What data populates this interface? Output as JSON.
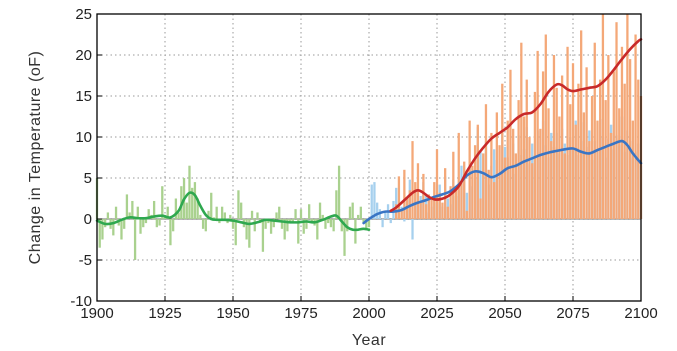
{
  "chart_data": {
    "type": "line",
    "xlabel": "Year",
    "ylabel": "Change in Temperature (oF)",
    "xlim": [
      1900,
      2100
    ],
    "ylim": [
      -10,
      25
    ],
    "x_ticks": [
      "1900",
      "1925",
      "1950",
      "1975",
      "2000",
      "2025",
      "2050",
      "2075",
      "2100"
    ],
    "y_ticks": [
      "-10",
      "-5",
      "0",
      "5",
      "10",
      "15",
      "20",
      "25"
    ],
    "grid": true,
    "colors": {
      "historical_bars": "#a9d18e",
      "historical_line": "#2fa84f",
      "low_bars": "#a6d0ee",
      "low_line": "#3a75c4",
      "high_bars": "#f4a878",
      "high_line": "#c82a2a"
    },
    "series": [
      {
        "kind": "bars",
        "color_key": "historical_bars",
        "x": [
          1900,
          1901,
          1902,
          1903,
          1904,
          1905,
          1906,
          1907,
          1908,
          1909,
          1910,
          1911,
          1912,
          1913,
          1914,
          1915,
          1916,
          1917,
          1918,
          1919,
          1920,
          1921,
          1922,
          1923,
          1924,
          1925,
          1926,
          1927,
          1928,
          1929,
          1930,
          1931,
          1932,
          1933,
          1934,
          1935,
          1936,
          1937,
          1938,
          1939,
          1940,
          1941,
          1942,
          1943,
          1944,
          1945,
          1946,
          1947,
          1948,
          1949,
          1950,
          1951,
          1952,
          1953,
          1954,
          1955,
          1956,
          1957,
          1958,
          1959,
          1960,
          1961,
          1962,
          1963,
          1964,
          1965,
          1966,
          1967,
          1968,
          1969,
          1970,
          1971,
          1972,
          1973,
          1974,
          1975,
          1976,
          1977,
          1978,
          1979,
          1980,
          1981,
          1982,
          1983,
          1984,
          1985,
          1986,
          1987,
          1988,
          1989,
          1990,
          1991,
          1992,
          1993,
          1994,
          1995,
          1996,
          1997,
          1998,
          1999,
          2000
        ],
        "values": [
          5,
          -3.5,
          -2.5,
          -1,
          0.8,
          -1.2,
          -2,
          1.5,
          -0.8,
          -2.5,
          -1.2,
          3,
          0.8,
          2.2,
          -5,
          1.5,
          -1.8,
          -1,
          -0.5,
          1.2,
          0.5,
          2.2,
          -1,
          -0.8,
          4,
          0.5,
          1.5,
          -3.2,
          -1.5,
          2.5,
          0.8,
          4,
          5,
          2,
          6.5,
          3.8,
          4.5,
          2.5,
          0.5,
          -1.2,
          -1.5,
          1,
          3.2,
          0.2,
          1.5,
          -0.5,
          1.5,
          0.8,
          -0.5,
          0.5,
          -1.2,
          -3.2,
          3.5,
          2,
          -1,
          -2.5,
          -3.5,
          1,
          -1.5,
          0.8,
          -0.5,
          -4,
          -1.2,
          -0.5,
          -1.8,
          -1,
          0.8,
          1.5,
          -1.2,
          -2.5,
          -1.5,
          -0.5,
          -0.5,
          1.2,
          -3,
          1.2,
          -1.8,
          -1.2,
          1.8,
          -0.5,
          -0.8,
          -2.5,
          2,
          0.5,
          -1.2,
          -0.5,
          -1,
          -1.5,
          3.5,
          6.5,
          -1.5,
          -4.5,
          -1.5,
          1.5,
          2,
          -3,
          0.5,
          1.5,
          -0.5,
          -1.2,
          -1
        ]
      },
      {
        "name": "",
        "kind": "line",
        "color_key": "historical_line",
        "x": [
          1900,
          1903,
          1906,
          1909,
          1912,
          1915,
          1918,
          1921,
          1924,
          1927,
          1930,
          1932,
          1934,
          1936,
          1938,
          1940,
          1942,
          1944,
          1947,
          1950,
          1953,
          1956,
          1959,
          1962,
          1965,
          1968,
          1971,
          1974,
          1977,
          1980,
          1983,
          1986,
          1988,
          1990,
          1992,
          1994,
          1996,
          1998,
          2000
        ],
        "values": [
          -0.2,
          -0.6,
          -0.5,
          -0.1,
          0.2,
          0.1,
          0.1,
          0.3,
          0.4,
          0.2,
          1.0,
          2.4,
          3.2,
          2.9,
          1.6,
          0.5,
          0.0,
          -0.1,
          -0.1,
          -0.2,
          -0.4,
          -0.6,
          -0.4,
          -0.1,
          -0.2,
          -0.3,
          -0.4,
          -0.4,
          -0.3,
          -0.4,
          -0.1,
          0.3,
          0.4,
          -0.3,
          -1.0,
          -1.3,
          -1.3,
          -1.2,
          -1.3
        ]
      },
      {
        "kind": "bars",
        "color_key": "low_bars",
        "x": [
          2001,
          2002,
          2003,
          2004,
          2005,
          2006,
          2007,
          2008,
          2009,
          2010,
          2011,
          2012,
          2013,
          2014,
          2015,
          2016,
          2017,
          2018,
          2019,
          2020,
          2021,
          2022,
          2023,
          2024,
          2025,
          2026,
          2027,
          2028,
          2029,
          2030,
          2031,
          2032,
          2033,
          2034,
          2035,
          2036,
          2037,
          2038,
          2039,
          2040,
          2041,
          2042,
          2043,
          2044,
          2045,
          2046,
          2047,
          2048,
          2049,
          2050,
          2051,
          2052,
          2053,
          2054,
          2055,
          2056,
          2057,
          2058,
          2059,
          2060,
          2061,
          2062,
          2063,
          2064,
          2065,
          2066,
          2067,
          2068,
          2069,
          2070,
          2071,
          2072,
          2073,
          2074,
          2075,
          2076,
          2077,
          2078,
          2079,
          2080,
          2081,
          2082,
          2083,
          2084,
          2085,
          2086,
          2087,
          2088,
          2089,
          2090,
          2091,
          2092,
          2093,
          2094,
          2095,
          2096,
          2097,
          2098,
          2099,
          2100
        ],
        "values": [
          4.2,
          4.5,
          2,
          1.2,
          -1,
          0.8,
          1.8,
          -0.5,
          2.2,
          3.8,
          0.2,
          1.5,
          -0.3,
          2.5,
          4.8,
          -2.5,
          3.2,
          1.8,
          2.8,
          4.5,
          3,
          0.8,
          1.5,
          2.5,
          2,
          4.2,
          1.5,
          5.2,
          2.5,
          1.8,
          4.8,
          2.8,
          3.5,
          6.5,
          5.5,
          3.2,
          6.2,
          4,
          5,
          11.2,
          8.2,
          6,
          9.5,
          4.2,
          6.5,
          8.5,
          7.2,
          5.5,
          10.5,
          8.8,
          7.5,
          6,
          9.2,
          5.5,
          10.2,
          7.8,
          8.5,
          11.2,
          6.8,
          9.2,
          7.8,
          10.8,
          8.2,
          12,
          9,
          7.5,
          10.5,
          8.8,
          10.5,
          8,
          11,
          9.2,
          7.8,
          10,
          8.5,
          12,
          7.8,
          9.5,
          11.8,
          8.8,
          10.8,
          7.2,
          9.5,
          8.5,
          12.2,
          10,
          7.5,
          9.8,
          11.5,
          8.5,
          10.2,
          9,
          12.5,
          8.2,
          10.8,
          9.5,
          7.5,
          8.2,
          9.2,
          6.5
        ]
      },
      {
        "name": "",
        "kind": "line",
        "color_key": "low_line",
        "x": [
          1998,
          2000,
          2003,
          2006,
          2009,
          2012,
          2015,
          2018,
          2021,
          2024,
          2027,
          2030,
          2033,
          2036,
          2039,
          2042,
          2045,
          2048,
          2051,
          2054,
          2057,
          2060,
          2063,
          2066,
          2069,
          2072,
          2075,
          2078,
          2081,
          2084,
          2087,
          2090,
          2093,
          2095,
          2097,
          2100
        ],
        "values": [
          -0.5,
          0.0,
          0.6,
          0.9,
          0.9,
          1.1,
          1.6,
          2.0,
          2.3,
          2.7,
          3.0,
          3.4,
          4.2,
          5.3,
          5.8,
          5.6,
          5.1,
          5.5,
          6.2,
          6.5,
          7.0,
          7.4,
          7.8,
          8.1,
          8.3,
          8.5,
          8.6,
          8.2,
          8.0,
          8.4,
          8.8,
          9.2,
          9.5,
          9.0,
          8.0,
          6.8
        ]
      },
      {
        "kind": "bars",
        "color_key": "high_bars",
        "x": [
          2010,
          2011,
          2012,
          2013,
          2014,
          2015,
          2016,
          2017,
          2018,
          2019,
          2020,
          2021,
          2022,
          2023,
          2024,
          2025,
          2026,
          2027,
          2028,
          2029,
          2030,
          2031,
          2032,
          2033,
          2034,
          2035,
          2036,
          2037,
          2038,
          2039,
          2040,
          2041,
          2042,
          2043,
          2044,
          2045,
          2046,
          2047,
          2048,
          2049,
          2050,
          2051,
          2052,
          2053,
          2054,
          2055,
          2056,
          2057,
          2058,
          2059,
          2060,
          2061,
          2062,
          2063,
          2064,
          2065,
          2066,
          2067,
          2068,
          2069,
          2070,
          2071,
          2072,
          2073,
          2074,
          2075,
          2076,
          2077,
          2078,
          2079,
          2080,
          2081,
          2082,
          2083,
          2084,
          2085,
          2086,
          2087,
          2088,
          2089,
          2090,
          2091,
          2092,
          2093,
          2094,
          2095,
          2096,
          2097,
          2098,
          2099,
          2100
        ],
        "values": [
          1.8,
          5.2,
          1.2,
          6,
          2.5,
          3.5,
          9.5,
          4.5,
          6.8,
          2.2,
          5.5,
          1.8,
          3,
          2.5,
          4.5,
          8.5,
          3.2,
          2,
          6.2,
          1.5,
          4,
          8.2,
          3.5,
          10.5,
          4.5,
          7,
          1,
          12,
          6.5,
          9,
          11.5,
          2.5,
          8,
          14,
          6,
          10.5,
          4.5,
          13,
          9,
          16.5,
          7.5,
          12,
          18.2,
          11,
          8,
          14.5,
          21.5,
          12.5,
          17,
          10,
          6.8,
          15.5,
          20.5,
          11,
          18,
          22.5,
          13.5,
          9.5,
          20,
          16,
          12.5,
          17.5,
          8,
          21,
          14,
          19,
          11.5,
          16.5,
          23,
          13,
          18.5,
          9.5,
          15,
          21.5,
          12,
          17,
          25,
          14.5,
          20,
          10.5,
          18,
          24,
          13.5,
          21,
          16.5,
          25,
          19.5,
          12,
          22.5,
          17,
          15
        ]
      },
      {
        "name": "",
        "kind": "line",
        "color_key": "high_line",
        "x": [
          2008,
          2010,
          2013,
          2016,
          2018,
          2020,
          2022,
          2024,
          2026,
          2028,
          2030,
          2033,
          2036,
          2039,
          2042,
          2045,
          2048,
          2051,
          2054,
          2057,
          2060,
          2063,
          2066,
          2069,
          2071,
          2073,
          2075,
          2078,
          2081,
          2084,
          2087,
          2090,
          2093,
          2096,
          2099,
          2100
        ],
        "values": [
          1.0,
          1.4,
          2.3,
          3.2,
          3.5,
          3.2,
          2.7,
          2.4,
          2.4,
          2.6,
          3.0,
          4.0,
          5.8,
          7.4,
          8.7,
          9.8,
          10.5,
          11.2,
          12.2,
          12.8,
          13.0,
          14.0,
          15.5,
          16.4,
          16.3,
          15.8,
          15.6,
          15.8,
          16.0,
          16.2,
          17.0,
          18.2,
          19.5,
          20.7,
          21.7,
          21.9
        ]
      }
    ]
  }
}
